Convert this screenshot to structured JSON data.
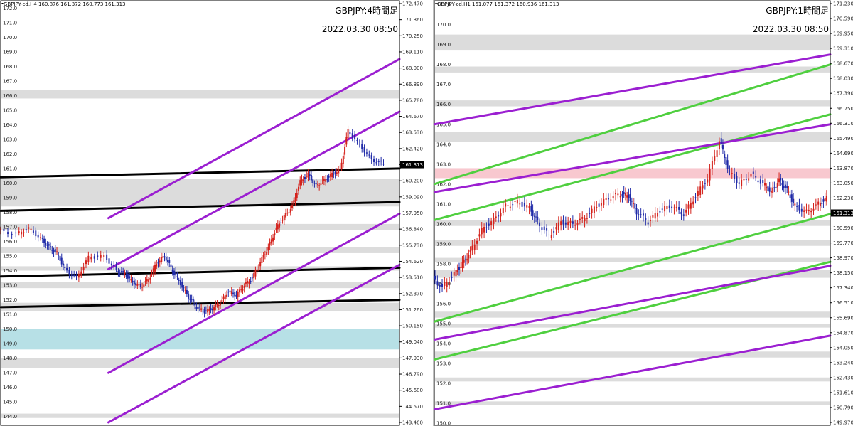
{
  "chart_data": [
    {
      "type": "candlestick",
      "header": "GBPJPY-cd,H4  160.876 161.372 160.773 161.313",
      "title": "GBPJPY:4時間足",
      "timestamp": "2022.03.30 08:50",
      "left_axis_labels": [
        "172.0",
        "171.0",
        "170.0",
        "169.0",
        "168.0",
        "167.0",
        "166.0",
        "165.0",
        "164.0",
        "163.0",
        "162.0",
        "161.0",
        "160.0",
        "159.0",
        "158.0",
        "157.0",
        "156.0",
        "155.0",
        "154.0",
        "153.0",
        "152.0",
        "151.0",
        "150.0",
        "149.0",
        "148.0",
        "147.0",
        "146.0",
        "145.0",
        "144.0"
      ],
      "right_axis_labels": [
        "172.470",
        "171.360",
        "170.250",
        "169.110",
        "168.000",
        "166.890",
        "165.780",
        "164.670",
        "163.530",
        "162.420",
        "161.313",
        "160.200",
        "159.090",
        "157.950",
        "156.840",
        "155.730",
        "154.620",
        "153.510",
        "152.370",
        "151.260",
        "150.150",
        "149.040",
        "147.930",
        "146.790",
        "145.680",
        "144.570",
        "143.460"
      ],
      "current_price": "161.313",
      "ylim": [
        143.4,
        172.5
      ],
      "zones": [
        {
          "y1": 165.8,
          "y2": 166.4,
          "color": "#dcdcdc"
        },
        {
          "y1": 158.4,
          "y2": 160.3,
          "color": "#dcdcdc"
        },
        {
          "y1": 156.8,
          "y2": 157.2,
          "color": "#dcdcdc"
        },
        {
          "y1": 155.2,
          "y2": 155.6,
          "color": "#dcdcdc"
        },
        {
          "y1": 154.0,
          "y2": 154.3,
          "color": "#dcdcdc"
        },
        {
          "y1": 152.8,
          "y2": 153.2,
          "color": "#dcdcdc"
        },
        {
          "y1": 151.2,
          "y2": 151.8,
          "color": "#dcdcdc"
        },
        {
          "y1": 148.6,
          "y2": 150.0,
          "color": "#b7e0e6"
        },
        {
          "y1": 147.3,
          "y2": 148.0,
          "color": "#dcdcdc"
        },
        {
          "y1": 143.9,
          "y2": 144.2,
          "color": "#dcdcdc"
        }
      ],
      "lines": [
        {
          "x1": 0,
          "y1": 160.4,
          "x2": 1,
          "y2": 161.0,
          "color": "#000000"
        },
        {
          "x1": 0,
          "y1": 158.1,
          "x2": 1,
          "y2": 158.7,
          "color": "#000000"
        },
        {
          "x1": 0,
          "y1": 153.6,
          "x2": 1,
          "y2": 154.2,
          "color": "#000000"
        },
        {
          "x1": 0,
          "y1": 151.5,
          "x2": 1,
          "y2": 152.0,
          "color": "#000000"
        },
        {
          "x1": 0.27,
          "y1": 157.6,
          "x2": 1,
          "y2": 168.5,
          "color": "#9b1fd1"
        },
        {
          "x1": 0.27,
          "y1": 154.1,
          "x2": 1,
          "y2": 164.9,
          "color": "#9b1fd1"
        },
        {
          "x1": 0.27,
          "y1": 147.0,
          "x2": 1,
          "y2": 157.9,
          "color": "#9b1fd1"
        },
        {
          "x1": 0.27,
          "y1": 143.6,
          "x2": 1,
          "y2": 154.4,
          "color": "#9b1fd1"
        }
      ],
      "price_path": [
        156.8,
        156.5,
        156.9,
        156.2,
        155.6,
        155.2,
        154.1,
        153.5,
        154.9,
        155.0,
        154.0,
        153.8,
        153.2,
        152.9,
        153.4,
        154.5,
        155.0,
        154.0,
        153.1,
        152.2,
        151.5,
        151.2,
        151.4,
        151.8,
        152.6,
        152.3,
        153.0,
        153.5,
        154.6,
        155.6,
        156.9,
        157.7,
        158.4,
        160.1,
        160.6,
        159.8,
        160.2,
        160.6,
        160.9,
        163.6,
        162.6,
        161.6,
        161.3
      ],
      "price_path_x": [
        0.0,
        0.05,
        0.08,
        0.11,
        0.13,
        0.15,
        0.17,
        0.2,
        0.23,
        0.27,
        0.3,
        0.32,
        0.34,
        0.36,
        0.38,
        0.4,
        0.42,
        0.44,
        0.46,
        0.48,
        0.5,
        0.52,
        0.54,
        0.56,
        0.58,
        0.6,
        0.62,
        0.64,
        0.66,
        0.68,
        0.7,
        0.72,
        0.74,
        0.76,
        0.78,
        0.8,
        0.82,
        0.84,
        0.86,
        0.88,
        0.91,
        0.94,
        0.97
      ]
    },
    {
      "type": "candlestick",
      "header": "GBPJPY-cd,H1  161.077 161.372 160.936 161.313",
      "title": "GBPJPY:1時間足",
      "timestamp": "2022.03.30 08:50",
      "left_axis_labels": [
        "171.0",
        "170.0",
        "169.0",
        "168.0",
        "167.0",
        "166.0",
        "165.0",
        "164.0",
        "163.0",
        "162.0",
        "161.0",
        "160.0",
        "159.0",
        "158.0",
        "157.0",
        "156.0",
        "155.0",
        "154.0",
        "153.0",
        "152.0",
        "151.0",
        "150.0"
      ],
      "right_axis_labels": [
        "171.230",
        "170.590",
        "169.950",
        "169.310",
        "168.670",
        "168.030",
        "167.390",
        "166.750",
        "166.310",
        "165.490",
        "164.690",
        "163.870",
        "163.050",
        "162.230",
        "161.313",
        "160.590",
        "159.770",
        "158.970",
        "158.150",
        "157.340",
        "156.510",
        "155.690",
        "154.870",
        "154.050",
        "153.240",
        "152.430",
        "151.610",
        "150.790",
        "149.970"
      ],
      "current_price": "161.313",
      "ylim": [
        149.9,
        171.2
      ],
      "zones": [
        {
          "y1": 168.7,
          "y2": 169.5,
          "color": "#dcdcdc"
        },
        {
          "y1": 167.6,
          "y2": 167.9,
          "color": "#dcdcdc"
        },
        {
          "y1": 165.9,
          "y2": 166.2,
          "color": "#dcdcdc"
        },
        {
          "y1": 164.1,
          "y2": 164.6,
          "color": "#dcdcdc"
        },
        {
          "y1": 162.3,
          "y2": 162.8,
          "color": "#f8c8cf"
        },
        {
          "y1": 159.9,
          "y2": 160.2,
          "color": "#dcdcdc"
        },
        {
          "y1": 158.9,
          "y2": 159.2,
          "color": "#dcdcdc"
        },
        {
          "y1": 158.1,
          "y2": 158.3,
          "color": "#dcdcdc"
        },
        {
          "y1": 157.3,
          "y2": 157.7,
          "color": "#dcdcdc"
        },
        {
          "y1": 155.3,
          "y2": 155.6,
          "color": "#dcdcdc"
        },
        {
          "y1": 154.8,
          "y2": 155.0,
          "color": "#dcdcdc"
        },
        {
          "y1": 153.3,
          "y2": 153.6,
          "color": "#dcdcdc"
        },
        {
          "y1": 152.1,
          "y2": 152.3,
          "color": "#dcdcdc"
        },
        {
          "y1": 150.9,
          "y2": 151.1,
          "color": "#dcdcdc"
        }
      ],
      "lines": [
        {
          "x1": 0,
          "y1": 162.0,
          "x2": 1,
          "y2": 168.0,
          "color": "#4fcf3f"
        },
        {
          "x1": 0,
          "y1": 160.2,
          "x2": 1,
          "y2": 165.5,
          "color": "#4fcf3f"
        },
        {
          "x1": 0,
          "y1": 155.1,
          "x2": 1,
          "y2": 160.5,
          "color": "#4fcf3f"
        },
        {
          "x1": 0,
          "y1": 153.2,
          "x2": 1,
          "y2": 158.1,
          "color": "#4fcf3f"
        },
        {
          "x1": 0,
          "y1": 165.0,
          "x2": 1,
          "y2": 168.5,
          "color": "#9b1fd1"
        },
        {
          "x1": 0,
          "y1": 161.6,
          "x2": 1,
          "y2": 165.0,
          "color": "#9b1fd1"
        },
        {
          "x1": 0,
          "y1": 154.2,
          "x2": 1,
          "y2": 157.9,
          "color": "#9b1fd1"
        },
        {
          "x1": 0,
          "y1": 150.7,
          "x2": 1,
          "y2": 154.4,
          "color": "#9b1fd1"
        }
      ],
      "price_path": [
        157.4,
        156.8,
        157.5,
        158.0,
        158.6,
        159.7,
        160.2,
        160.9,
        161.1,
        160.8,
        160.1,
        159.4,
        160.1,
        160.0,
        160.3,
        160.9,
        161.3,
        161.5,
        161.4,
        160.6,
        160.1,
        160.7,
        160.9,
        160.5,
        161.4,
        162.3,
        164.2,
        162.8,
        162.0,
        162.5,
        162.0,
        161.6,
        162.2,
        161.7,
        160.9,
        160.6,
        161.0,
        161.3
      ],
      "price_path_x": [
        0.0,
        0.03,
        0.06,
        0.08,
        0.1,
        0.13,
        0.16,
        0.19,
        0.22,
        0.25,
        0.27,
        0.3,
        0.33,
        0.36,
        0.39,
        0.42,
        0.45,
        0.48,
        0.5,
        0.52,
        0.55,
        0.58,
        0.61,
        0.64,
        0.67,
        0.7,
        0.73,
        0.75,
        0.78,
        0.81,
        0.84,
        0.86,
        0.88,
        0.9,
        0.92,
        0.95,
        0.98,
        1.0
      ]
    }
  ],
  "colors": {
    "up": "#d4211b",
    "down": "#1f2aa8",
    "axis": "#222222",
    "price_badge_bg": "#000000",
    "price_badge_fg": "#ffffff"
  }
}
